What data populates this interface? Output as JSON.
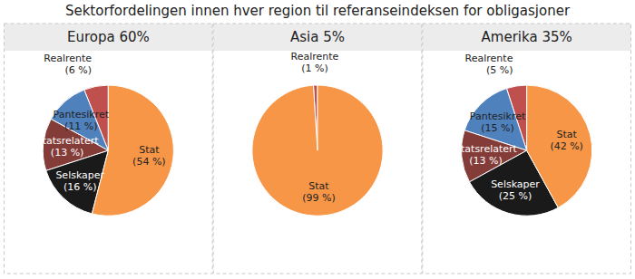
{
  "title": "Sektorfordelingen innen hver region til referanseindeksen for obligasjoner",
  "chart_data": [
    {
      "type": "pie",
      "title": "Europa 60%",
      "categories": [
        "Realrente",
        "Pantesikret",
        "Statsrelatert",
        "Selskaper",
        "Stat"
      ],
      "values": [
        6,
        11,
        13,
        16,
        54
      ],
      "value_labels": [
        "(6 %)",
        "(11 %)",
        "(13 %)",
        "(16 %)",
        "(54 %)"
      ],
      "data_labels": true,
      "colors": [
        "#c0504d",
        "#4f81bd",
        "#843c39",
        "#1a1a1a",
        "#f79646"
      ]
    },
    {
      "type": "pie",
      "title": "Asia 5%",
      "categories": [
        "Realrente",
        "Stat"
      ],
      "values": [
        1,
        99
      ],
      "value_labels": [
        "(1 %)",
        "(99 %)"
      ],
      "data_labels": true,
      "colors": [
        "#c0504d",
        "#f79646"
      ]
    },
    {
      "type": "pie",
      "title": "Amerika 35%",
      "categories": [
        "Realrente",
        "Pantesikret",
        "Statsrelatert",
        "Selskaper",
        "Stat"
      ],
      "values": [
        5,
        15,
        13,
        25,
        42
      ],
      "value_labels": [
        "(5 %)",
        "(15 %)",
        "(13 %)",
        "(25 %)",
        "(42 %)"
      ],
      "data_labels": true,
      "colors": [
        "#c0504d",
        "#4f81bd",
        "#843c39",
        "#1a1a1a",
        "#f79646"
      ]
    }
  ]
}
